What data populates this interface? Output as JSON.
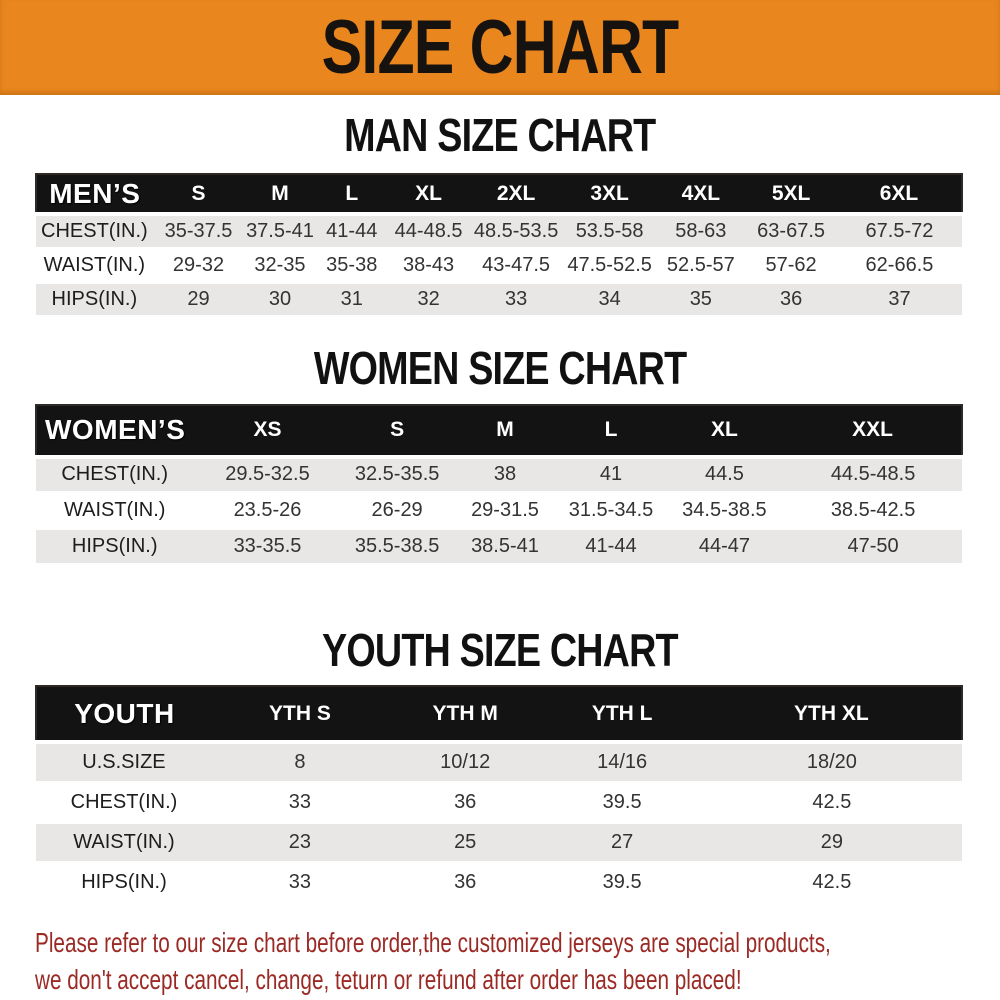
{
  "banner": {
    "title": "SIZE CHART"
  },
  "chart_data": [
    {
      "type": "table",
      "title": "MAN SIZE CHART",
      "row_header": "MEN’S",
      "columns": [
        "S",
        "M",
        "L",
        "XL",
        "2XL",
        "3XL",
        "4XL",
        "5XL",
        "6XL"
      ],
      "rows": [
        {
          "label": "CHEST(IN.)",
          "values": [
            "35-37.5",
            "37.5-41",
            "41-44",
            "44-48.5",
            "48.5-53.5",
            "53.5-58",
            "58-63",
            "63-67.5",
            "67.5-72"
          ]
        },
        {
          "label": "WAIST(IN.)",
          "values": [
            "29-32",
            "32-35",
            "35-38",
            "38-43",
            "43-47.5",
            "47.5-52.5",
            "52.5-57",
            "57-62",
            "62-66.5"
          ]
        },
        {
          "label": "HIPS(IN.)",
          "values": [
            "29",
            "30",
            "31",
            "32",
            "33",
            "34",
            "35",
            "36",
            "37"
          ]
        }
      ]
    },
    {
      "type": "table",
      "title": "WOMEN SIZE CHART",
      "row_header": "WOMEN’S",
      "columns": [
        "XS",
        "S",
        "M",
        "L",
        "XL",
        "XXL"
      ],
      "rows": [
        {
          "label": "CHEST(IN.)",
          "values": [
            "29.5-32.5",
            "32.5-35.5",
            "38",
            "41",
            "44.5",
            "44.5-48.5"
          ]
        },
        {
          "label": "WAIST(IN.)",
          "values": [
            "23.5-26",
            "26-29",
            "29-31.5",
            "31.5-34.5",
            "34.5-38.5",
            "38.5-42.5"
          ]
        },
        {
          "label": "HIPS(IN.)",
          "values": [
            "33-35.5",
            "35.5-38.5",
            "38.5-41",
            "41-44",
            "44-47",
            "47-50"
          ]
        }
      ]
    },
    {
      "type": "table",
      "title": "YOUTH SIZE CHART",
      "row_header": "YOUTH",
      "columns": [
        "YTH S",
        "YTH M",
        "YTH L",
        "YTH XL"
      ],
      "rows": [
        {
          "label": "U.S.SIZE",
          "values": [
            "8",
            "10/12",
            "14/16",
            "18/20"
          ]
        },
        {
          "label": "CHEST(IN.)",
          "values": [
            "33",
            "36",
            "39.5",
            "42.5"
          ]
        },
        {
          "label": "WAIST(IN.)",
          "values": [
            "23",
            "25",
            "27",
            "29"
          ]
        },
        {
          "label": "HIPS(IN.)",
          "values": [
            "33",
            "36",
            "39.5",
            "42.5"
          ]
        }
      ]
    }
  ],
  "footer": {
    "line1": "Please refer to our size chart before order,the customized jerseys are special products,",
    "line2": "we don't accept cancel, change, teturn or refund after order has been placed!"
  },
  "colors": {
    "banner_orange": "#E9871E",
    "header_bar_black": "#131313",
    "row_gray": "#E8E7E5",
    "footer_red": "#9B2A25",
    "value_text": "#333333"
  }
}
